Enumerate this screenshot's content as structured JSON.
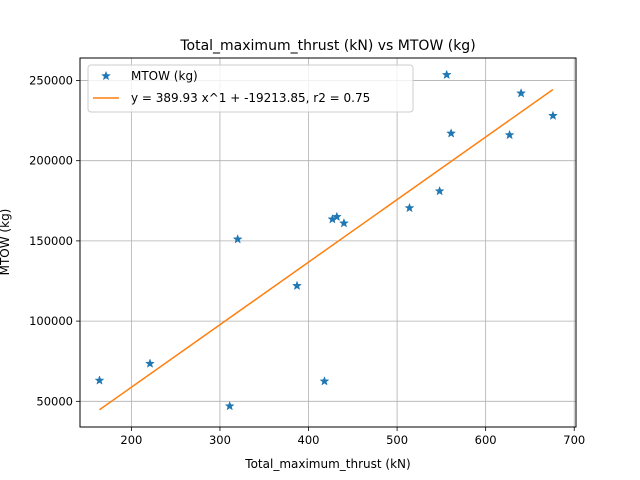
{
  "chart_data": {
    "type": "scatter",
    "title": "Total_maximum_thrust (kN) vs MTOW (kg)",
    "xlabel": "Total_maximum_thrust (kN)",
    "ylabel": "MTOW (kg)",
    "xlim": [
      142,
      702
    ],
    "ylim": [
      34000,
      264000
    ],
    "xticks": [
      200,
      300,
      400,
      500,
      600,
      700
    ],
    "yticks": [
      50000,
      100000,
      150000,
      200000,
      250000
    ],
    "grid": true,
    "legend_position": "top-left",
    "series": [
      {
        "name": "MTOW (kg)",
        "kind": "scatter",
        "marker": "star",
        "color": "#1f77b4",
        "x": [
          164,
          221,
          311,
          320,
          387,
          418,
          427,
          432,
          440,
          514,
          548,
          556,
          561,
          627,
          640,
          676
        ],
        "y": [
          63000,
          73500,
          47000,
          151000,
          122000,
          62500,
          163500,
          165000,
          161000,
          170500,
          181000,
          253500,
          217000,
          216000,
          242000,
          228000
        ]
      },
      {
        "name": "y = 389.93 x^1 + -19213.85, r2 = 0.75",
        "kind": "line",
        "color": "#ff7f0e",
        "x": [
          164,
          676
        ],
        "y": [
          44735,
          244379
        ]
      }
    ]
  }
}
